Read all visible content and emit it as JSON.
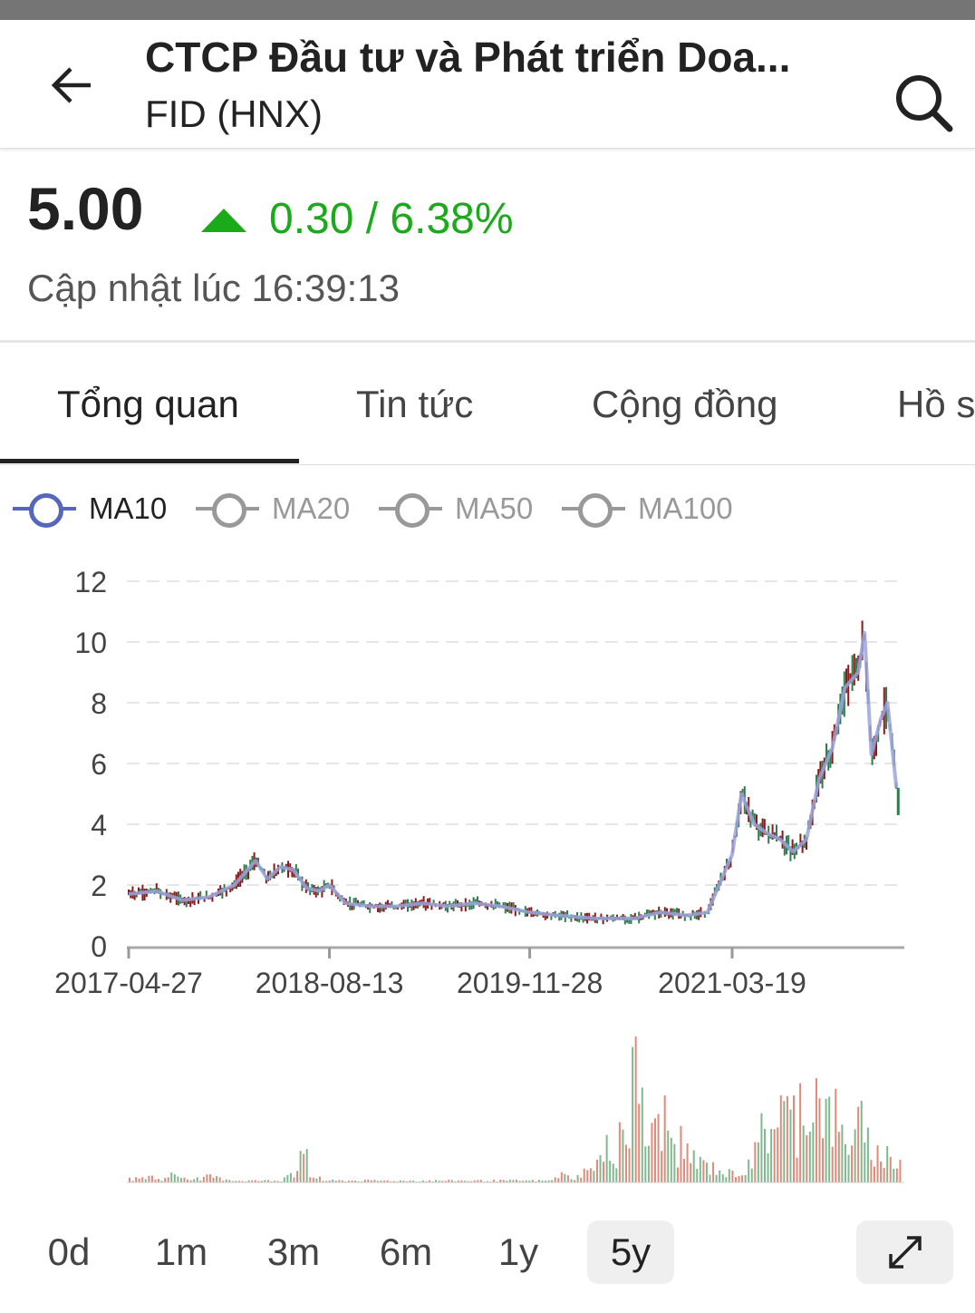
{
  "header": {
    "title": "CTCP Đầu tư và Phát triển Doa...",
    "subtitle": "FID (HNX)",
    "back_icon": "arrow-left-icon",
    "search_icon": "search-icon"
  },
  "quote": {
    "price": "5.00",
    "change": "0.30 / 6.38%",
    "direction": "up",
    "up_color": "#1aaa1a",
    "updated": "Cập nhật lúc 16:39:13"
  },
  "tabs": [
    {
      "label": "Tổng quan",
      "active": true
    },
    {
      "label": "Tin tức"
    },
    {
      "label": "Cộng đồng"
    },
    {
      "label": "Hồ s"
    }
  ],
  "legend": [
    {
      "label": "MA10",
      "active": true,
      "color": "#5566bb"
    },
    {
      "label": "MA20",
      "active": false,
      "color": "#999999"
    },
    {
      "label": "MA50",
      "active": false,
      "color": "#999999"
    },
    {
      "label": "MA100",
      "active": false,
      "color": "#999999"
    }
  ],
  "ranges": [
    {
      "label": "0d"
    },
    {
      "label": "1m"
    },
    {
      "label": "3m"
    },
    {
      "label": "6m"
    },
    {
      "label": "1y"
    },
    {
      "label": "5y",
      "selected": true
    }
  ],
  "chart_data": {
    "type": "line",
    "y_ticks": [
      "0",
      "2",
      "4",
      "6",
      "8",
      "10",
      "12"
    ],
    "ylim": [
      0,
      12
    ],
    "x_ticks": [
      "2017-04-27",
      "2018-08-13",
      "2019-11-28",
      "2021-03-19"
    ],
    "grid": true,
    "colors": {
      "up": "#2e7d4f",
      "down": "#8b1a1a",
      "ma10": "#9aa4dd"
    },
    "series": [
      {
        "name": "MA10",
        "x": [
          "2017-04-27",
          "2017-07-01",
          "2017-09-01",
          "2017-11-01",
          "2018-01-01",
          "2018-02-20",
          "2018-03-20",
          "2018-04-20",
          "2018-05-20",
          "2018-06-20",
          "2018-07-20",
          "2018-08-13",
          "2018-09-20",
          "2018-11-20",
          "2019-01-20",
          "2019-03-20",
          "2019-05-20",
          "2019-07-20",
          "2019-09-20",
          "2019-11-28",
          "2020-02-01",
          "2020-05-01",
          "2020-08-01",
          "2020-10-01",
          "2020-12-01",
          "2021-01-20",
          "2021-02-10",
          "2021-03-19",
          "2021-04-10",
          "2021-05-10",
          "2021-06-10",
          "2021-07-10",
          "2021-08-10",
          "2021-09-10",
          "2021-10-10",
          "2021-11-10",
          "2021-12-10",
          "2022-01-10",
          "2022-01-25",
          "2022-02-10",
          "2022-03-05",
          "2022-03-20",
          "2022-04-10"
        ],
        "y": [
          1.7,
          1.8,
          1.5,
          1.6,
          2.0,
          2.8,
          2.2,
          2.6,
          2.5,
          1.9,
          1.8,
          2.0,
          1.4,
          1.3,
          1.3,
          1.4,
          1.3,
          1.4,
          1.3,
          1.1,
          1.0,
          0.9,
          0.9,
          1.1,
          1.0,
          1.1,
          1.8,
          3.0,
          5.0,
          4.0,
          3.7,
          3.5,
          3.1,
          3.5,
          5.5,
          6.5,
          8.5,
          9.0,
          10.3,
          6.3,
          7.5,
          8.0,
          5.2
        ]
      }
    ],
    "last_close": 5.0,
    "volume_relative": [
      2,
      3,
      2,
      4,
      3,
      2,
      3,
      2,
      1,
      1,
      1,
      1,
      5,
      12,
      3,
      1,
      1,
      1,
      1,
      1,
      1,
      1,
      1,
      1,
      1,
      1,
      1,
      1,
      1,
      1,
      1,
      1,
      1,
      4,
      3,
      6,
      12,
      18,
      30,
      55,
      25,
      35,
      20,
      15,
      10,
      8,
      5,
      6,
      15,
      30,
      40,
      35,
      45,
      50,
      35,
      25,
      30,
      20,
      15,
      12
    ]
  }
}
